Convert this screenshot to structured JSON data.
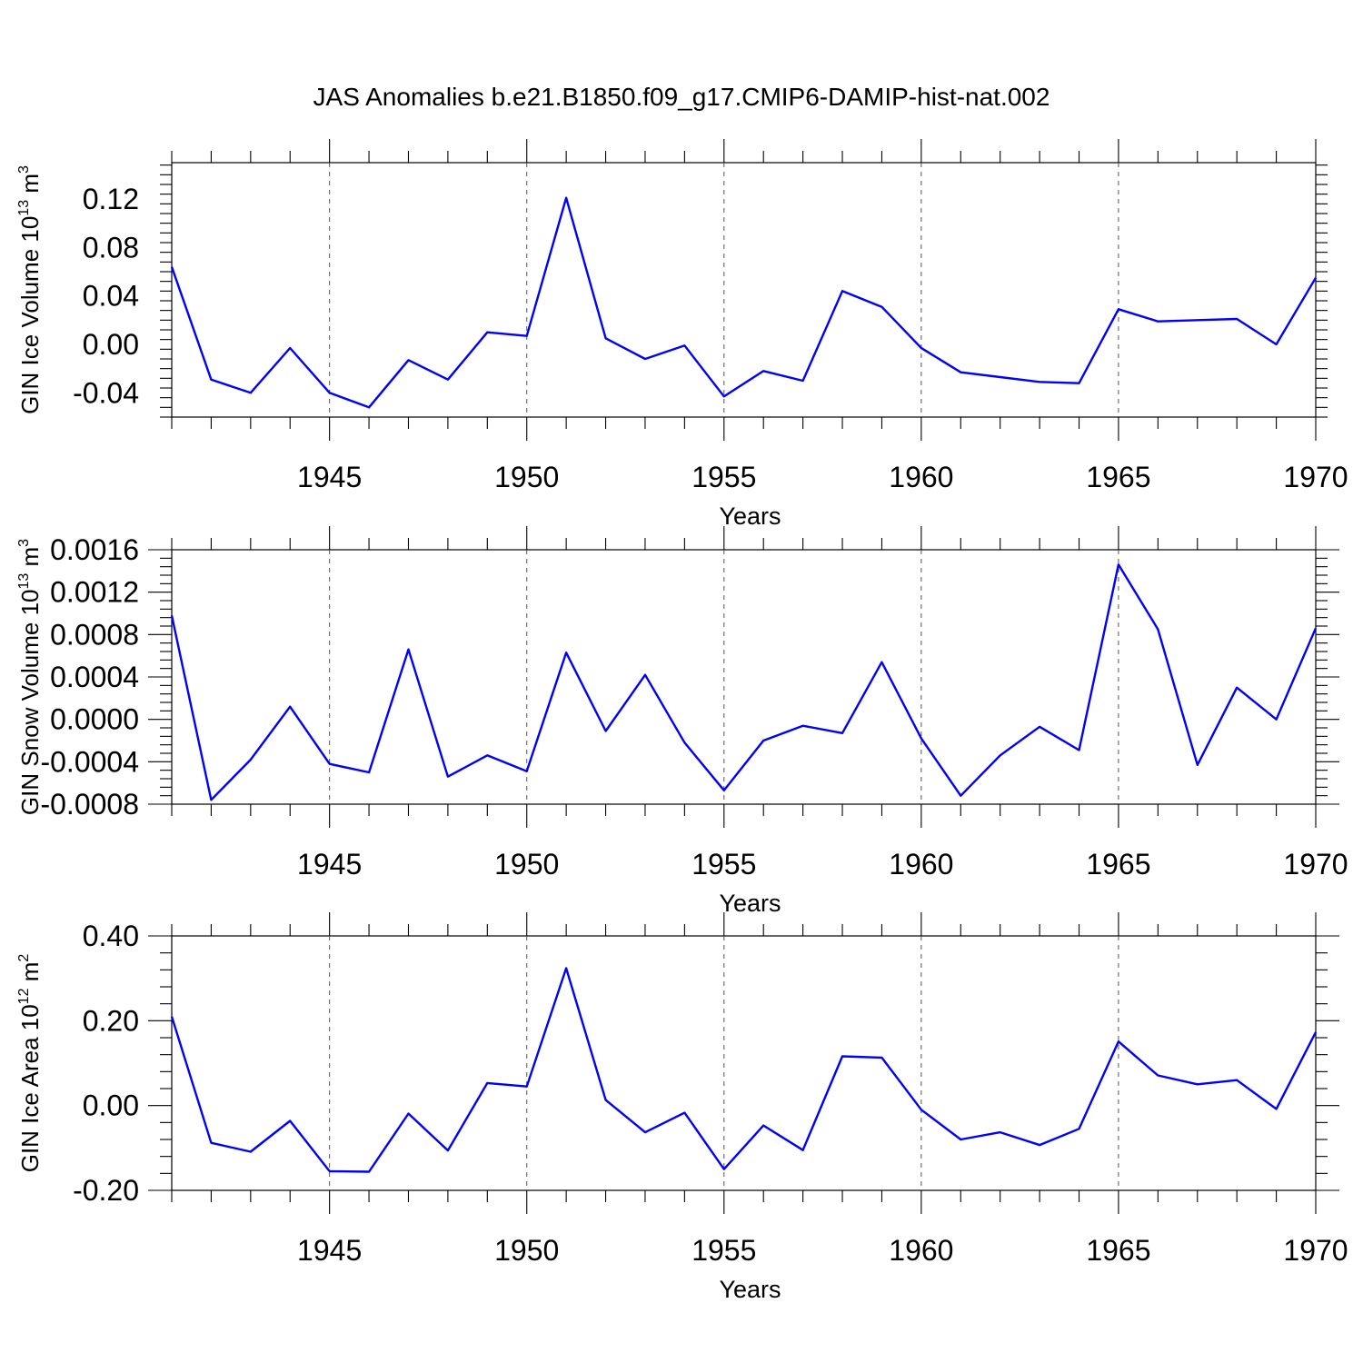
{
  "title": "JAS Anomalies b.e21.B1850.f09_g17.CMIP6-DAMIP-hist-nat.002",
  "colors": {
    "line": "#0000ff",
    "axis": "#000000",
    "grid": "#555555"
  },
  "chart_data": [
    {
      "type": "line",
      "ylabel": "GIN Ice Volume 10",
      "ylabel_exp": "13",
      "ylabel_unit": " m",
      "ylabel_unit_exp": "3",
      "xlabel": "Years",
      "xlim": [
        1941,
        1970
      ],
      "ylim": [
        -0.06,
        0.15
      ],
      "yticks": [
        -0.04,
        0.0,
        0.04,
        0.08,
        0.12
      ],
      "ytick_labels": [
        "-0.04",
        "0.00",
        "0.04",
        "0.08",
        "0.12"
      ],
      "xticks": [
        1945,
        1950,
        1955,
        1960,
        1965,
        1970
      ],
      "xtick_labels": [
        "1945",
        "1950",
        "1955",
        "1960",
        "1965",
        "1970"
      ],
      "x": [
        1941,
        1942,
        1943,
        1944,
        1945,
        1946,
        1947,
        1948,
        1949,
        1950,
        1951,
        1952,
        1953,
        1954,
        1955,
        1956,
        1957,
        1958,
        1959,
        1960,
        1961,
        1962,
        1963,
        1964,
        1965,
        1966,
        1967,
        1968,
        1969,
        1970
      ],
      "values": [
        0.064,
        -0.029,
        -0.04,
        -0.003,
        -0.04,
        -0.052,
        -0.013,
        -0.029,
        0.01,
        0.007,
        0.121,
        0.005,
        -0.012,
        -0.001,
        -0.043,
        -0.022,
        -0.03,
        0.044,
        0.031,
        -0.003,
        -0.023,
        -0.027,
        -0.031,
        -0.032,
        0.029,
        0.019,
        0.02,
        0.021,
        0.0,
        0.055
      ]
    },
    {
      "type": "line",
      "ylabel": "GIN Snow Volume 10",
      "ylabel_exp": "13",
      "ylabel_unit": " m",
      "ylabel_unit_exp": "3",
      "xlabel": "Years",
      "xlim": [
        1941,
        1970
      ],
      "ylim": [
        -0.0008,
        0.0016
      ],
      "yticks": [
        -0.0008,
        -0.0004,
        0.0,
        0.0004,
        0.0008,
        0.0012,
        0.0016
      ],
      "ytick_labels": [
        "-0.0008",
        "-0.0004",
        "0.0000",
        "0.0004",
        "0.0008",
        "0.0012",
        "0.0016"
      ],
      "xticks": [
        1945,
        1950,
        1955,
        1960,
        1965,
        1970
      ],
      "xtick_labels": [
        "1945",
        "1950",
        "1955",
        "1960",
        "1965",
        "1970"
      ],
      "x": [
        1941,
        1942,
        1943,
        1944,
        1945,
        1946,
        1947,
        1948,
        1949,
        1950,
        1951,
        1952,
        1953,
        1954,
        1955,
        1956,
        1957,
        1958,
        1959,
        1960,
        1961,
        1962,
        1963,
        1964,
        1965,
        1966,
        1967,
        1968,
        1969,
        1970
      ],
      "values": [
        0.00098,
        -0.00076,
        -0.00038,
        0.00012,
        -0.00042,
        -0.0005,
        0.00066,
        -0.00054,
        -0.00034,
        -0.00049,
        0.00063,
        -0.00011,
        0.00042,
        -0.00022,
        -0.00067,
        -0.0002,
        -6e-05,
        -0.00013,
        0.00054,
        -0.00018,
        -0.00072,
        -0.00034,
        -7e-05,
        -0.00029,
        0.00146,
        0.00085,
        -0.00043,
        0.0003,
        0.0,
        0.00086
      ]
    },
    {
      "type": "line",
      "ylabel": "GIN Ice Area 10",
      "ylabel_exp": "12",
      "ylabel_unit": " m",
      "ylabel_unit_exp": "2",
      "xlabel": "Years",
      "xlim": [
        1941,
        1970
      ],
      "ylim": [
        -0.2,
        0.4
      ],
      "yticks": [
        -0.2,
        0.0,
        0.2,
        0.4
      ],
      "ytick_labels": [
        "-0.20",
        "0.00",
        "0.20",
        "0.40"
      ],
      "xticks": [
        1945,
        1950,
        1955,
        1960,
        1965,
        1970
      ],
      "xtick_labels": [
        "1945",
        "1950",
        "1955",
        "1960",
        "1965",
        "1970"
      ],
      "x": [
        1941,
        1942,
        1943,
        1944,
        1945,
        1946,
        1947,
        1948,
        1949,
        1950,
        1951,
        1952,
        1953,
        1954,
        1955,
        1956,
        1957,
        1958,
        1959,
        1960,
        1961,
        1962,
        1963,
        1964,
        1965,
        1966,
        1967,
        1968,
        1969,
        1970
      ],
      "values": [
        0.21,
        -0.088,
        -0.109,
        -0.036,
        -0.155,
        -0.156,
        -0.019,
        -0.106,
        0.053,
        0.045,
        0.324,
        0.013,
        -0.063,
        -0.017,
        -0.15,
        -0.047,
        -0.105,
        0.116,
        0.113,
        -0.01,
        -0.08,
        -0.063,
        -0.093,
        -0.055,
        0.151,
        0.071,
        0.05,
        0.06,
        -0.008,
        0.173
      ]
    }
  ]
}
